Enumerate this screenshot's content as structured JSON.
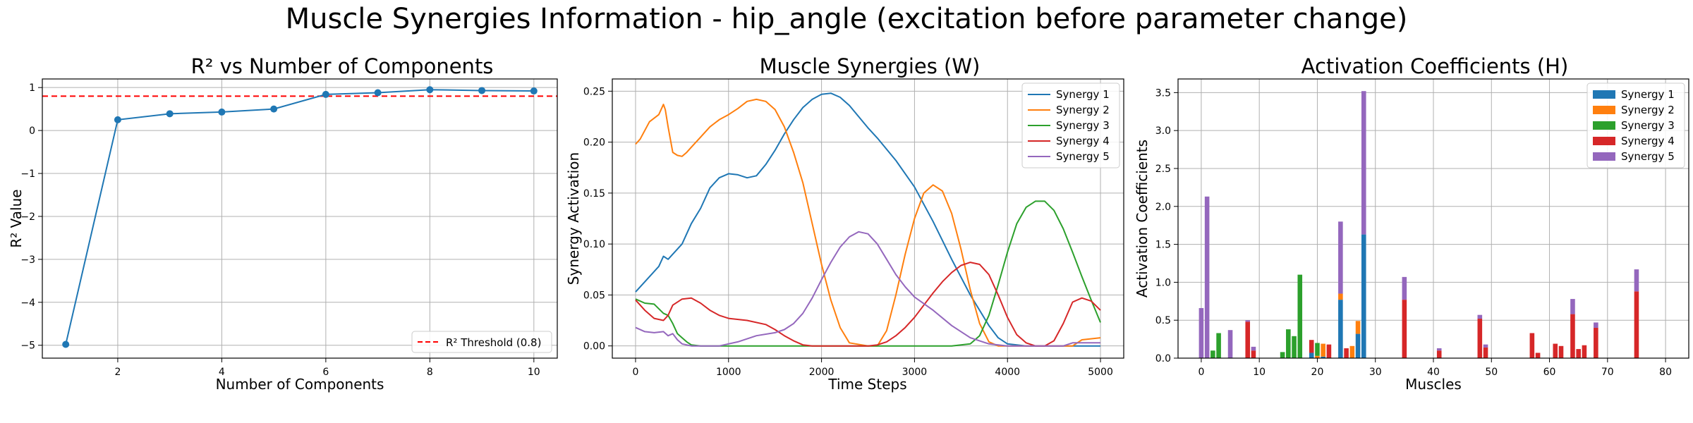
{
  "figure_title": "Muscle Synergies Information - hip_angle (excitation before parameter change)",
  "colors": {
    "blue": "#1f77b4",
    "orange": "#ff7f0e",
    "green": "#2ca02c",
    "red": "#d62728",
    "purple": "#9467bd",
    "threshold": "#ff0000",
    "grid": "#b0b0b0"
  },
  "chart_data": [
    {
      "type": "line",
      "title": "R² vs Number of Components",
      "xlabel": "Number of Components",
      "ylabel": "R² Value",
      "xlim": [
        0.55,
        10.45
      ],
      "ylim": [
        -5.3,
        1.2
      ],
      "xticks": [
        2,
        4,
        6,
        8,
        10
      ],
      "yticks": [
        1,
        0,
        -1,
        -2,
        -3,
        -4,
        -5
      ],
      "ytick_labels": [
        "1",
        "0",
        "−1",
        "−2",
        "−3",
        "−4",
        "−5"
      ],
      "grid": true,
      "legend_position": "lower-right",
      "x": [
        1,
        2,
        3,
        4,
        5,
        6,
        7,
        8,
        9,
        10
      ],
      "y": [
        -4.98,
        0.25,
        0.39,
        0.43,
        0.5,
        0.84,
        0.88,
        0.95,
        0.93,
        0.92
      ],
      "threshold": {
        "value": 0.8,
        "label": "R² Threshold (0.8)"
      }
    },
    {
      "type": "line",
      "title": "Muscle Synergies (W)",
      "xlabel": "Time Steps",
      "ylabel": "Synergy Activation",
      "xlim": [
        -250,
        5250
      ],
      "ylim": [
        -0.012,
        0.262
      ],
      "xticks": [
        0,
        1000,
        2000,
        3000,
        4000,
        5000
      ],
      "yticks": [
        0.0,
        0.05,
        0.1,
        0.15,
        0.2,
        0.25
      ],
      "ytick_labels": [
        "0.00",
        "0.05",
        "0.10",
        "0.15",
        "0.20",
        "0.25"
      ],
      "grid": true,
      "legend_position": "upper-right",
      "series": [
        {
          "name": "Synergy 1",
          "color": "#1f77b4",
          "x": [
            0,
            150,
            250,
            300,
            350,
            400,
            500,
            600,
            700,
            800,
            900,
            1000,
            1100,
            1200,
            1300,
            1400,
            1500,
            1600,
            1700,
            1800,
            1900,
            2000,
            2100,
            2200,
            2300,
            2400,
            2500,
            2600,
            2800,
            3000,
            3200,
            3400,
            3600,
            3800,
            3900,
            4000,
            4200,
            4600,
            5000
          ],
          "y": [
            0.053,
            0.068,
            0.078,
            0.088,
            0.085,
            0.09,
            0.1,
            0.12,
            0.135,
            0.155,
            0.165,
            0.169,
            0.168,
            0.165,
            0.167,
            0.178,
            0.192,
            0.208,
            0.222,
            0.234,
            0.242,
            0.247,
            0.248,
            0.244,
            0.236,
            0.225,
            0.214,
            0.204,
            0.182,
            0.156,
            0.122,
            0.085,
            0.05,
            0.02,
            0.008,
            0.002,
            0.0,
            0.0,
            0.0
          ]
        },
        {
          "name": "Synergy 2",
          "color": "#ff7f0e",
          "x": [
            0,
            50,
            150,
            250,
            300,
            320,
            350,
            400,
            450,
            500,
            550,
            600,
            700,
            800,
            900,
            1000,
            1100,
            1200,
            1300,
            1400,
            1500,
            1600,
            1700,
            1800,
            1900,
            2000,
            2100,
            2200,
            2300,
            2500,
            2600,
            2700,
            2800,
            2900,
            3000,
            3100,
            3200,
            3300,
            3400,
            3500,
            3600,
            3700,
            3800,
            3900,
            4000,
            4700,
            4800,
            5000
          ],
          "y": [
            0.198,
            0.203,
            0.22,
            0.227,
            0.237,
            0.232,
            0.215,
            0.19,
            0.187,
            0.186,
            0.19,
            0.195,
            0.205,
            0.215,
            0.222,
            0.227,
            0.233,
            0.24,
            0.242,
            0.24,
            0.232,
            0.215,
            0.19,
            0.16,
            0.12,
            0.08,
            0.045,
            0.018,
            0.003,
            0.0,
            0.0,
            0.015,
            0.05,
            0.09,
            0.125,
            0.15,
            0.158,
            0.152,
            0.13,
            0.095,
            0.055,
            0.022,
            0.004,
            0.0,
            0.0,
            0.0,
            0.006,
            0.008
          ]
        },
        {
          "name": "Synergy 3",
          "color": "#2ca02c",
          "x": [
            0,
            100,
            200,
            300,
            350,
            400,
            450,
            500,
            550,
            600,
            700,
            3400,
            3600,
            3700,
            3800,
            3900,
            4000,
            4100,
            4200,
            4300,
            4400,
            4500,
            4600,
            4700,
            4800,
            4900,
            5000
          ],
          "y": [
            0.046,
            0.042,
            0.041,
            0.032,
            0.03,
            0.022,
            0.012,
            0.008,
            0.004,
            0.001,
            0.0,
            0.0,
            0.002,
            0.01,
            0.03,
            0.06,
            0.092,
            0.12,
            0.136,
            0.142,
            0.142,
            0.133,
            0.115,
            0.092,
            0.068,
            0.045,
            0.023
          ]
        },
        {
          "name": "Synergy 4",
          "color": "#d62728",
          "x": [
            0,
            100,
            200,
            300,
            350,
            400,
            500,
            600,
            700,
            800,
            900,
            1000,
            1200,
            1400,
            1500,
            1600,
            1700,
            1800,
            1900,
            2000,
            2200,
            2500,
            2600,
            2700,
            2800,
            2900,
            3000,
            3100,
            3200,
            3300,
            3400,
            3500,
            3600,
            3700,
            3800,
            3900,
            4000,
            4100,
            4200,
            4300,
            4400,
            4500,
            4600,
            4700,
            4800,
            4900,
            5000
          ],
          "y": [
            0.045,
            0.035,
            0.027,
            0.025,
            0.03,
            0.04,
            0.046,
            0.047,
            0.042,
            0.035,
            0.03,
            0.027,
            0.025,
            0.021,
            0.016,
            0.01,
            0.005,
            0.001,
            0.0,
            0.0,
            0.0,
            0.0,
            0.001,
            0.004,
            0.01,
            0.018,
            0.028,
            0.04,
            0.052,
            0.063,
            0.072,
            0.079,
            0.082,
            0.08,
            0.07,
            0.05,
            0.028,
            0.011,
            0.003,
            0.0,
            0.0,
            0.005,
            0.022,
            0.043,
            0.047,
            0.044,
            0.035
          ]
        },
        {
          "name": "Synergy 5",
          "color": "#9467bd",
          "x": [
            0,
            100,
            200,
            300,
            350,
            400,
            450,
            500,
            600,
            900,
            1100,
            1300,
            1500,
            1600,
            1700,
            1800,
            1900,
            2000,
            2100,
            2200,
            2300,
            2400,
            2500,
            2600,
            2700,
            2800,
            2900,
            3000,
            3200,
            3400,
            3600,
            3800,
            4000,
            4200,
            4600,
            4700,
            5000
          ],
          "y": [
            0.018,
            0.014,
            0.013,
            0.014,
            0.01,
            0.012,
            0.006,
            0.002,
            0.0,
            0.0,
            0.004,
            0.01,
            0.013,
            0.016,
            0.022,
            0.032,
            0.047,
            0.065,
            0.082,
            0.097,
            0.107,
            0.112,
            0.11,
            0.1,
            0.085,
            0.07,
            0.058,
            0.048,
            0.035,
            0.02,
            0.008,
            0.002,
            0.0,
            0.0,
            0.0,
            0.003,
            0.003
          ]
        }
      ]
    },
    {
      "type": "bar",
      "stacked": true,
      "title": "Activation Coefficients (H)",
      "xlabel": "Muscles",
      "ylabel": "Activation Coefficients",
      "xlim": [
        -4,
        84
      ],
      "ylim": [
        0,
        3.68
      ],
      "xticks": [
        0,
        10,
        20,
        30,
        40,
        50,
        60,
        70,
        80
      ],
      "yticks": [
        0.0,
        0.5,
        1.0,
        1.5,
        2.0,
        2.5,
        3.0,
        3.5
      ],
      "ytick_labels": [
        "0.0",
        "0.5",
        "1.0",
        "1.5",
        "2.0",
        "2.5",
        "3.0",
        "3.5"
      ],
      "grid": true,
      "legend_position": "upper-right",
      "bar_width": 0.8,
      "series_names": [
        "Synergy 1",
        "Synergy 2",
        "Synergy 3",
        "Synergy 4",
        "Synergy 5"
      ],
      "series_colors": [
        "#1f77b4",
        "#ff7f0e",
        "#2ca02c",
        "#d62728",
        "#9467bd"
      ],
      "muscles": [
        0,
        1,
        2,
        3,
        5,
        8,
        9,
        14,
        15,
        16,
        17,
        19,
        20,
        21,
        22,
        24,
        25,
        26,
        27,
        28,
        35,
        41,
        48,
        49,
        57,
        58,
        61,
        62,
        64,
        65,
        66,
        68,
        75
      ],
      "segments": [
        [
          0,
          0,
          0,
          0,
          0.66
        ],
        [
          0,
          0,
          0,
          0,
          2.13
        ],
        [
          0,
          0,
          0.1,
          0,
          0
        ],
        [
          0,
          0,
          0.33,
          0,
          0
        ],
        [
          0,
          0,
          0,
          0,
          0.37
        ],
        [
          0,
          0,
          0,
          0.48,
          0.02
        ],
        [
          0,
          0,
          0,
          0.1,
          0.05
        ],
        [
          0,
          0,
          0.08,
          0,
          0
        ],
        [
          0,
          0,
          0.38,
          0,
          0
        ],
        [
          0,
          0,
          0.29,
          0,
          0
        ],
        [
          0,
          0,
          1.1,
          0,
          0
        ],
        [
          0.07,
          0,
          0,
          0.17,
          0
        ],
        [
          0,
          0.03,
          0.17,
          0,
          0
        ],
        [
          0.02,
          0.17,
          0,
          0,
          0
        ],
        [
          0,
          0,
          0,
          0.18,
          0
        ],
        [
          0.77,
          0.08,
          0,
          0,
          0.95
        ],
        [
          0,
          0,
          0,
          0.13,
          0
        ],
        [
          0,
          0.16,
          0,
          0,
          0
        ],
        [
          0.32,
          0.17,
          0,
          0,
          0
        ],
        [
          1.63,
          0,
          0,
          0,
          1.89
        ],
        [
          0,
          0,
          0,
          0.77,
          0.3
        ],
        [
          0,
          0,
          0,
          0.1,
          0.03
        ],
        [
          0,
          0,
          0,
          0.52,
          0.05
        ],
        [
          0,
          0,
          0,
          0.14,
          0.04
        ],
        [
          0,
          0,
          0,
          0.33,
          0
        ],
        [
          0,
          0,
          0,
          0.07,
          0
        ],
        [
          0,
          0,
          0,
          0.19,
          0
        ],
        [
          0,
          0,
          0,
          0.16,
          0
        ],
        [
          0,
          0,
          0,
          0.58,
          0.2
        ],
        [
          0,
          0,
          0,
          0.12,
          0
        ],
        [
          0,
          0,
          0,
          0.17,
          0
        ],
        [
          0,
          0,
          0,
          0.4,
          0.07
        ],
        [
          0,
          0,
          0,
          0.88,
          0.29
        ]
      ]
    }
  ]
}
